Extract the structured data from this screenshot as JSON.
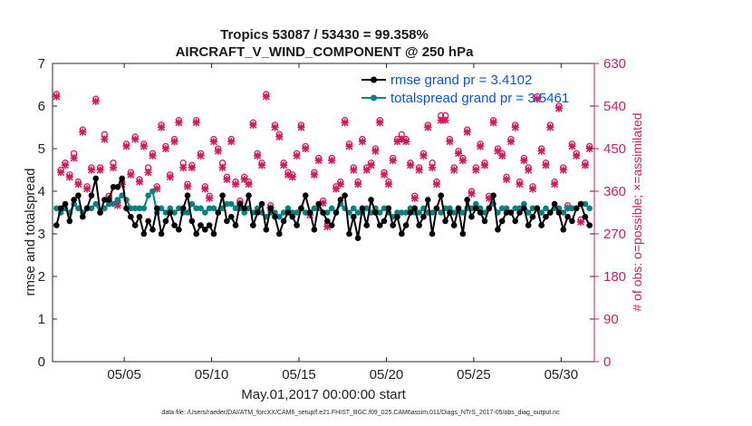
{
  "chart_data": {
    "type": "line",
    "title": "Tropics 53087 / 53430 = 99.358%",
    "subtitle": "AIRCRAFT_V_WIND_COMPONENT @ 250 hPa",
    "xlabel": "May.01,2017 00:00:00 start",
    "ylabel": "rmse and totalspread",
    "ylabel_right": "# of obs: o=possible; ×=assimilated",
    "xlim": [
      0.9,
      31.9
    ],
    "ylim": [
      0,
      7
    ],
    "ylim_right": [
      0,
      630
    ],
    "x_ticks": [
      5,
      10,
      15,
      20,
      25,
      30
    ],
    "x_tick_labels": [
      "05/05",
      "05/10",
      "05/15",
      "05/20",
      "05/25",
      "05/30"
    ],
    "y_ticks": [
      0,
      1,
      2,
      3,
      4,
      5,
      6,
      7
    ],
    "y_right_ticks": [
      0,
      90,
      180,
      270,
      360,
      450,
      540,
      630
    ],
    "colors": {
      "rmse": "#000000",
      "spread": "#078282",
      "obs": "#d11b5e",
      "legend_text": "#0a52e6"
    },
    "series": [
      {
        "name": "rmse grand pr = 3.4102",
        "color": "#000000",
        "x": [
          1.125,
          1.375,
          1.625,
          1.875,
          2.125,
          2.375,
          2.625,
          2.875,
          3.125,
          3.375,
          3.625,
          3.875,
          4.125,
          4.375,
          4.625,
          4.875,
          5.125,
          5.375,
          5.625,
          5.875,
          6.125,
          6.375,
          6.625,
          6.875,
          7.125,
          7.375,
          7.625,
          7.875,
          8.125,
          8.375,
          8.625,
          8.875,
          9.125,
          9.375,
          9.625,
          9.875,
          10.125,
          10.375,
          10.625,
          10.875,
          11.125,
          11.375,
          11.625,
          11.875,
          12.125,
          12.375,
          12.625,
          12.875,
          13.125,
          13.375,
          13.625,
          13.875,
          14.125,
          14.375,
          14.625,
          14.875,
          15.125,
          15.375,
          15.625,
          15.875,
          16.125,
          16.375,
          16.625,
          16.875,
          17.125,
          17.375,
          17.625,
          17.875,
          18.125,
          18.375,
          18.625,
          18.875,
          19.125,
          19.375,
          19.625,
          19.875,
          20.125,
          20.375,
          20.625,
          20.875,
          21.125,
          21.375,
          21.625,
          21.875,
          22.125,
          22.375,
          22.625,
          22.875,
          23.125,
          23.375,
          23.625,
          23.875,
          24.125,
          24.375,
          24.625,
          24.875,
          25.125,
          25.375,
          25.625,
          25.875,
          26.125,
          26.375,
          26.625,
          26.875,
          27.125,
          27.375,
          27.625,
          27.875,
          28.125,
          28.375,
          28.625,
          28.875,
          29.125,
          29.375,
          29.625,
          29.875,
          30.125,
          30.375,
          30.625,
          30.875,
          31.125,
          31.375,
          31.625
        ],
        "values": [
          3.2,
          3.6,
          3.7,
          3.3,
          3.8,
          3.9,
          3.4,
          3.6,
          3.9,
          4.3,
          3.5,
          3.8,
          3.8,
          4.1,
          4.1,
          4.3,
          3.6,
          3.4,
          3.2,
          3.4,
          3.0,
          3.3,
          3.1,
          3.6,
          3.0,
          3.3,
          3.5,
          3.2,
          3.1,
          3.6,
          3.9,
          3.3,
          3.0,
          3.2,
          3.1,
          3.2,
          3.0,
          3.5,
          3.9,
          3.3,
          3.4,
          3.2,
          3.7,
          3.6,
          3.9,
          3.2,
          3.5,
          3.7,
          3.1,
          3.6,
          3.4,
          3.0,
          3.3,
          3.5,
          3.4,
          3.2,
          3.6,
          3.9,
          3.5,
          3.1,
          3.7,
          3.5,
          3.3,
          3.2,
          3.5,
          3.8,
          3.9,
          3.0,
          3.4,
          2.9,
          3.6,
          3.2,
          3.8,
          3.5,
          3.2,
          3.3,
          3.6,
          3.2,
          3.4,
          3.0,
          3.2,
          3.5,
          3.6,
          3.2,
          3.4,
          3.8,
          3.0,
          3.6,
          3.9,
          3.3,
          3.5,
          3.2,
          3.6,
          3.0,
          3.8,
          3.4,
          3.6,
          3.5,
          3.3,
          3.6,
          3.9,
          3.1,
          3.3,
          3.5,
          3.5,
          3.3,
          3.5,
          3.6,
          3.2,
          3.4,
          3.6,
          3.2,
          3.4,
          3.5,
          3.7,
          3.5,
          3.1,
          3.4,
          3.3,
          3.6,
          3.7,
          3.4,
          3.2
        ]
      },
      {
        "name": "totalspread grand pr = 3.5461",
        "color": "#078282",
        "x": [
          1.125,
          1.375,
          1.625,
          1.875,
          2.125,
          2.375,
          2.625,
          2.875,
          3.125,
          3.375,
          3.625,
          3.875,
          4.125,
          4.375,
          4.625,
          4.875,
          5.125,
          5.375,
          5.625,
          5.875,
          6.125,
          6.375,
          6.625,
          6.875,
          7.125,
          7.375,
          7.625,
          7.875,
          8.125,
          8.375,
          8.625,
          8.875,
          9.125,
          9.375,
          9.625,
          9.875,
          10.125,
          10.375,
          10.625,
          10.875,
          11.125,
          11.375,
          11.625,
          11.875,
          12.125,
          12.375,
          12.625,
          12.875,
          13.125,
          13.375,
          13.625,
          13.875,
          14.125,
          14.375,
          14.625,
          14.875,
          15.125,
          15.375,
          15.625,
          15.875,
          16.125,
          16.375,
          16.625,
          16.875,
          17.125,
          17.375,
          17.625,
          17.875,
          18.125,
          18.375,
          18.625,
          18.875,
          19.125,
          19.375,
          19.625,
          19.875,
          20.125,
          20.375,
          20.625,
          20.875,
          21.125,
          21.375,
          21.625,
          21.875,
          22.125,
          22.375,
          22.625,
          22.875,
          23.125,
          23.375,
          23.625,
          23.875,
          24.125,
          24.375,
          24.625,
          24.875,
          25.125,
          25.375,
          25.625,
          25.875,
          26.125,
          26.375,
          26.625,
          26.875,
          27.125,
          27.375,
          27.625,
          27.875,
          28.125,
          28.375,
          28.625,
          28.875,
          29.125,
          29.375,
          29.625,
          29.875,
          30.125,
          30.375,
          30.625,
          30.875,
          31.125,
          31.375,
          31.625
        ],
        "values": [
          3.6,
          3.5,
          3.6,
          3.5,
          3.7,
          3.6,
          3.5,
          3.6,
          3.6,
          3.7,
          3.5,
          3.6,
          3.7,
          3.7,
          3.8,
          3.9,
          3.8,
          3.6,
          3.6,
          3.6,
          3.6,
          3.9,
          4.0,
          3.5,
          3.6,
          3.5,
          3.6,
          3.5,
          3.6,
          3.5,
          3.5,
          3.7,
          3.6,
          3.6,
          3.5,
          3.6,
          3.6,
          3.5,
          3.6,
          3.7,
          3.7,
          3.6,
          3.6,
          3.5,
          3.6,
          3.5,
          3.6,
          3.5,
          3.4,
          3.5,
          3.5,
          3.4,
          3.5,
          3.6,
          3.5,
          3.5,
          3.6,
          3.5,
          3.5,
          3.6,
          3.6,
          3.5,
          3.5,
          3.6,
          3.5,
          3.7,
          3.6,
          3.5,
          3.6,
          3.5,
          3.5,
          3.6,
          3.5,
          3.6,
          3.5,
          3.6,
          3.5,
          3.4,
          3.5,
          3.5,
          3.5,
          3.6,
          3.5,
          3.5,
          3.6,
          3.5,
          3.5,
          3.6,
          3.5,
          3.6,
          3.6,
          3.5,
          3.6,
          3.5,
          3.6,
          3.6,
          3.7,
          3.6,
          3.5,
          3.6,
          3.7,
          3.5,
          3.6,
          3.6,
          3.5,
          3.6,
          3.6,
          3.7,
          3.5,
          3.6,
          3.6,
          3.5,
          3.6,
          3.5,
          3.6,
          3.6,
          3.5,
          3.6,
          3.6,
          3.6,
          3.7,
          3.7,
          3.6
        ]
      },
      {
        "name": "# of obs (possible / assimilated)",
        "color": "#d11b5e",
        "axis": "right",
        "x": [
          1.125,
          1.375,
          1.625,
          1.875,
          2.125,
          2.375,
          2.625,
          2.875,
          3.125,
          3.375,
          3.625,
          3.875,
          4.125,
          4.375,
          4.625,
          4.875,
          5.125,
          5.375,
          5.625,
          5.875,
          6.125,
          6.375,
          6.625,
          6.875,
          7.125,
          7.375,
          7.625,
          7.875,
          8.125,
          8.375,
          8.625,
          8.875,
          9.125,
          9.375,
          9.625,
          9.875,
          10.125,
          10.375,
          10.625,
          10.875,
          11.125,
          11.375,
          11.625,
          11.875,
          12.125,
          12.375,
          12.625,
          12.875,
          13.125,
          13.375,
          13.625,
          13.875,
          14.125,
          14.375,
          14.625,
          14.875,
          15.125,
          15.375,
          15.625,
          15.875,
          16.125,
          16.375,
          16.625,
          16.875,
          17.125,
          17.375,
          17.625,
          17.875,
          18.125,
          18.375,
          18.625,
          18.875,
          19.125,
          19.375,
          19.625,
          19.875,
          20.125,
          20.375,
          20.625,
          20.875,
          21.125,
          21.375,
          21.625,
          21.875,
          22.125,
          22.375,
          22.625,
          22.875,
          23.125,
          23.375,
          23.625,
          23.875,
          24.125,
          24.375,
          24.625,
          24.875,
          25.125,
          25.375,
          25.625,
          25.875,
          26.125,
          26.375,
          26.625,
          26.875,
          27.125,
          27.375,
          27.625,
          27.875,
          28.125,
          28.375,
          28.625,
          28.875,
          29.125,
          29.375,
          29.625,
          29.875,
          30.125,
          30.375,
          30.625,
          30.875,
          31.125,
          31.375,
          31.625
        ],
        "possible": [
          565,
          405,
          420,
          395,
          440,
          380,
          490,
          370,
          410,
          555,
          410,
          480,
          350,
          420,
          340,
          380,
          460,
          400,
          475,
          385,
          460,
          410,
          440,
          370,
          500,
          455,
          395,
          470,
          510,
          420,
          375,
          415,
          510,
          440,
          370,
          350,
          470,
          450,
          420,
          390,
          470,
          380,
          340,
          390,
          380,
          505,
          440,
          420,
          565,
          330,
          500,
          480,
          420,
          400,
          395,
          440,
          500,
          455,
          315,
          400,
          430,
          340,
          290,
          430,
          370,
          380,
          510,
          460,
          410,
          380,
          470,
          410,
          420,
          450,
          510,
          400,
          380,
          430,
          470,
          480,
          470,
          420,
          350,
          410,
          440,
          500,
          420,
          380,
          520,
          520,
          470,
          410,
          445,
          430,
          490,
          360,
          410,
          460,
          420,
          350,
          510,
          450,
          440,
          390,
          470,
          500,
          380,
          430,
          410,
          370,
          560,
          450,
          420,
          500,
          380,
          540,
          410,
          330,
          460,
          440,
          300,
          420,
          455
        ],
        "assimilated": [
          560,
          400,
          415,
          390,
          430,
          375,
          485,
          365,
          405,
          550,
          405,
          470,
          345,
          410,
          330,
          375,
          455,
          395,
          470,
          380,
          455,
          400,
          435,
          365,
          495,
          450,
          390,
          465,
          505,
          410,
          370,
          410,
          505,
          435,
          365,
          345,
          465,
          445,
          410,
          385,
          465,
          375,
          335,
          385,
          375,
          500,
          435,
          415,
          560,
          325,
          495,
          475,
          415,
          395,
          390,
          435,
          495,
          450,
          310,
          395,
          425,
          335,
          285,
          425,
          365,
          375,
          505,
          455,
          405,
          375,
          465,
          405,
          415,
          445,
          505,
          395,
          375,
          425,
          465,
          470,
          465,
          415,
          345,
          405,
          435,
          495,
          410,
          375,
          510,
          510,
          465,
          405,
          440,
          425,
          485,
          355,
          405,
          455,
          415,
          345,
          505,
          445,
          435,
          385,
          465,
          495,
          375,
          425,
          405,
          365,
          555,
          445,
          415,
          495,
          375,
          535,
          405,
          325,
          455,
          435,
          295,
          415,
          450
        ]
      }
    ],
    "legend": {
      "position": "top-right",
      "entries": [
        "rmse grand pr = 3.4102",
        "totalspread grand pr = 3.5461"
      ]
    },
    "footer_text": "data file: /Users/raeder/DAI/ATM_forcXX/CAM6_setup/f.e21.FHIST_BGC.f09_025.CAM6assim.011/Diags_NTrS_2017-05/obs_diag_output.nc",
    "grid": false
  }
}
